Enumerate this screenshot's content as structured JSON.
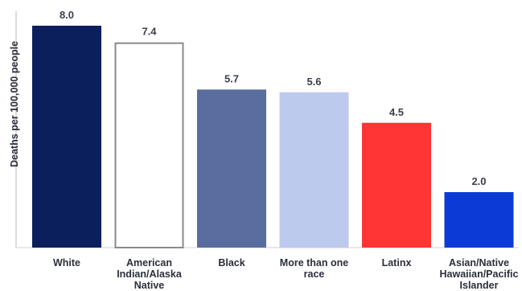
{
  "chart_data": {
    "type": "bar",
    "categories": [
      "White",
      "American Indian/Alaska Native",
      "Black",
      "More than one race",
      "Latinx",
      "Asian/Native Hawaiian/Pacific Islander"
    ],
    "category_lines": [
      [
        "White"
      ],
      [
        "American",
        "Indian/Alaska",
        "Native"
      ],
      [
        "Black"
      ],
      [
        "More than one",
        "race"
      ],
      [
        "Latinx"
      ],
      [
        "Asian/Native",
        "Hawaiian/Pacific",
        "Islander"
      ]
    ],
    "values": [
      8.0,
      7.4,
      5.7,
      5.6,
      4.5,
      2.0
    ],
    "value_labels": [
      "8.0",
      "7.4",
      "5.7",
      "5.6",
      "4.5",
      "2.0"
    ],
    "colors": [
      "#0b1f5c",
      "#ffffff",
      "#5a6d9f",
      "#bccaee",
      "#ff3434",
      "#0b3ad6"
    ],
    "outline_colors": [
      "",
      "#8a8a8a",
      "",
      "",
      "",
      ""
    ],
    "title": "",
    "xlabel": "",
    "ylabel": "Deaths per 100,000 people",
    "ylim": [
      0,
      8.0
    ],
    "grid": false,
    "legend": "none"
  }
}
